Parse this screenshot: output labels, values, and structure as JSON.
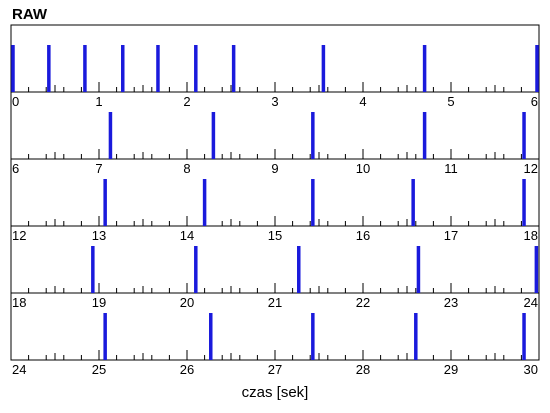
{
  "chart_data": {
    "type": "event-raster",
    "title": "RAW",
    "xlabel": "czas [sek]",
    "ylabel": "",
    "grid": false,
    "legend": null,
    "colors": {
      "event": "#1a1adc",
      "axis": "#000000"
    },
    "rows": [
      {
        "xlim": [
          0,
          6
        ],
        "tick_labels": [
          "0",
          "1",
          "2",
          "3",
          "4",
          "5",
          "6"
        ],
        "events": [
          0.0,
          0.43,
          0.84,
          1.27,
          1.67,
          2.1,
          2.53,
          3.55,
          4.7,
          5.98
        ]
      },
      {
        "xlim": [
          6,
          12
        ],
        "tick_labels": [
          "6",
          "7",
          "8",
          "9",
          "10",
          "11",
          "12"
        ],
        "events": [
          7.13,
          8.3,
          9.43,
          10.7,
          11.83
        ]
      },
      {
        "xlim": [
          12,
          18
        ],
        "tick_labels": [
          "12",
          "13",
          "14",
          "15",
          "16",
          "17",
          "18"
        ],
        "events": [
          13.07,
          14.2,
          15.43,
          16.57,
          17.83
        ]
      },
      {
        "xlim": [
          18,
          24
        ],
        "tick_labels": [
          "18",
          "19",
          "20",
          "21",
          "22",
          "23",
          "24"
        ],
        "events": [
          18.93,
          20.1,
          21.27,
          22.63,
          23.97
        ]
      },
      {
        "xlim": [
          24,
          30
        ],
        "tick_labels": [
          "24",
          "25",
          "26",
          "27",
          "28",
          "29",
          "30"
        ],
        "events": [
          25.07,
          26.27,
          27.43,
          28.6,
          29.83
        ]
      }
    ]
  }
}
